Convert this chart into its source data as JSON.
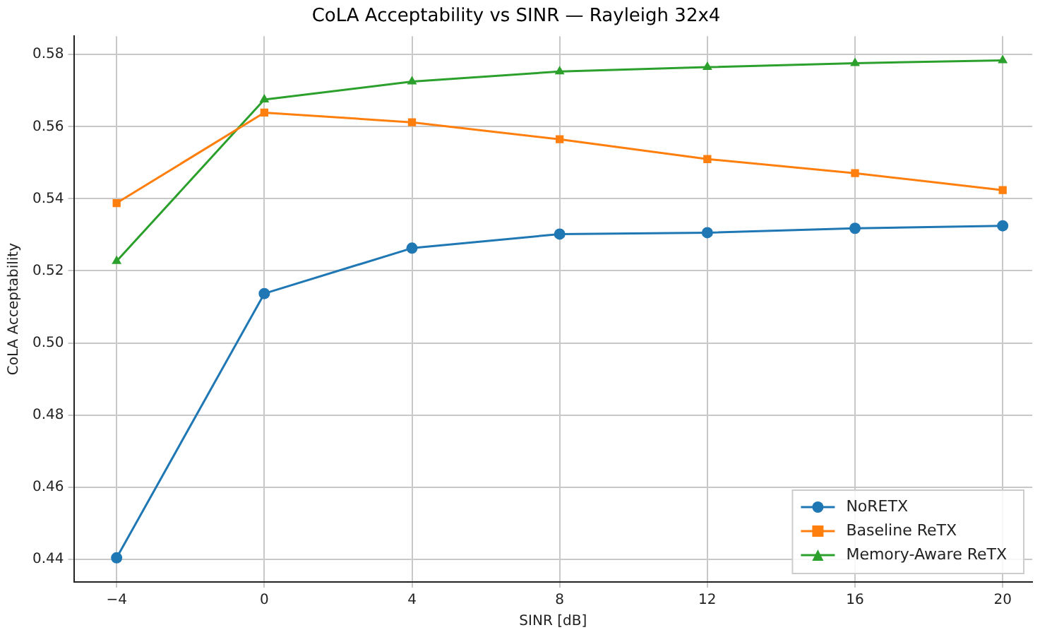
{
  "chart_data": {
    "type": "line",
    "title": "CoLA Acceptability vs SINR — Rayleigh 32x4",
    "xlabel": "SINR [dB]",
    "ylabel": "CoLA Acceptability",
    "x": [
      -4,
      0,
      4,
      8,
      12,
      16,
      20
    ],
    "series": [
      {
        "name": "NoRETX",
        "color": "#1f77b4",
        "marker": "circle",
        "values": [
          0.4404,
          0.5137,
          0.5263,
          0.5302,
          0.5306,
          0.5318,
          0.5325
        ]
      },
      {
        "name": "Baseline ReTX",
        "color": "#ff7f0e",
        "marker": "square",
        "values": [
          0.5388,
          0.5639,
          0.5612,
          0.5565,
          0.551,
          0.5471,
          0.5424
        ]
      },
      {
        "name": "Memory-Aware ReTX",
        "color": "#2ca02c",
        "marker": "triangle",
        "values": [
          0.5227,
          0.5675,
          0.5725,
          0.5753,
          0.5765,
          0.5776,
          0.5784
        ]
      }
    ],
    "xlim": [
      -5.16,
      20.8
    ],
    "ylim": [
      0.4337,
      0.5851
    ],
    "xticks": [
      {
        "value": -4,
        "label": "−4"
      },
      0,
      4,
      8,
      12,
      16,
      20
    ],
    "yticks": [
      {
        "value": 0.44,
        "label": "0.44"
      },
      {
        "value": 0.46,
        "label": "0.46"
      },
      {
        "value": 0.48,
        "label": "0.48"
      },
      {
        "value": 0.5,
        "label": "0.50"
      },
      {
        "value": 0.52,
        "label": "0.52"
      },
      {
        "value": 0.54,
        "label": "0.54"
      },
      {
        "value": 0.56,
        "label": "0.56"
      },
      {
        "value": 0.58,
        "label": "0.58"
      }
    ],
    "grid": true,
    "legend": "bottom right",
    "line_style": "solid"
  }
}
